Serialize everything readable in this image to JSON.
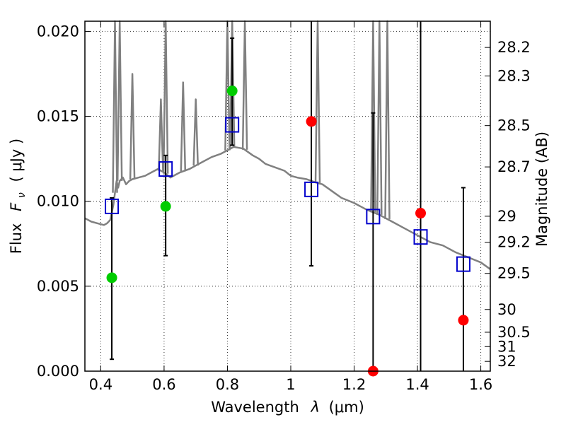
{
  "chart_data": {
    "type": "scatter",
    "xlabel_prefix": "Wavelength",
    "xlabel_symbol": "λ",
    "xlabel_unit": "(μm)",
    "ylabel_prefix": "Flux",
    "ylabel_symbol": "F",
    "ylabel_subscript": "ν",
    "ylabel_unit": "( μJy )",
    "y2label": "Magnitude (AB)",
    "xlim": [
      0.35,
      1.63
    ],
    "ylim": [
      0.0,
      0.0206
    ],
    "grid": true,
    "x_ticks": [
      0.4,
      0.6,
      0.8,
      1.0,
      1.2,
      1.4,
      1.6
    ],
    "x_tick_labels": [
      "0.4",
      "0.6",
      "0.8",
      "1",
      "1.2",
      "1.4",
      "1.6"
    ],
    "y_ticks": [
      0.0,
      0.005,
      0.01,
      0.015,
      0.02
    ],
    "y_tick_labels": [
      "0.000",
      "0.005",
      "0.010",
      "0.015",
      "0.020"
    ],
    "mag_ticks": [
      28.2,
      28.3,
      28.5,
      28.7,
      29,
      29.2,
      29.5,
      30,
      30.5,
      31,
      32
    ],
    "mag_tick_labels": [
      "28.2",
      "28.3",
      "28.5",
      "28.7",
      "29",
      "29.2",
      "29.5",
      "30",
      "30.5",
      "31",
      "32"
    ],
    "series": [
      {
        "kind": "model",
        "color": "#808080",
        "x": [
          0.35,
          0.37,
          0.39,
          0.41,
          0.42,
          0.43,
          0.44,
          0.445,
          0.45,
          0.455,
          0.46,
          0.47,
          0.48,
          0.49,
          0.5,
          0.52,
          0.54,
          0.56,
          0.58,
          0.6,
          0.62,
          0.65,
          0.68,
          0.7,
          0.72,
          0.75,
          0.78,
          0.8,
          0.82,
          0.85,
          0.88,
          0.9,
          0.92,
          0.95,
          0.98,
          1.0,
          1.02,
          1.05,
          1.08,
          1.1,
          1.13,
          1.16,
          1.2,
          1.24,
          1.28,
          1.32,
          1.36,
          1.4,
          1.44,
          1.48,
          1.52,
          1.56,
          1.6,
          1.63
        ],
        "y": [
          0.009,
          0.0088,
          0.0087,
          0.0086,
          0.0087,
          0.0089,
          0.0098,
          0.0105,
          0.0112,
          0.0108,
          0.0112,
          0.0114,
          0.011,
          0.0112,
          0.0113,
          0.0114,
          0.0115,
          0.0117,
          0.0119,
          0.0117,
          0.0114,
          0.0117,
          0.0119,
          0.0121,
          0.0123,
          0.0126,
          0.0128,
          0.013,
          0.0132,
          0.0131,
          0.0127,
          0.0125,
          0.0122,
          0.012,
          0.0118,
          0.0115,
          0.0114,
          0.0113,
          0.0111,
          0.011,
          0.0106,
          0.0102,
          0.0099,
          0.0095,
          0.0092,
          0.0088,
          0.0084,
          0.008,
          0.0076,
          0.0074,
          0.007,
          0.0067,
          0.0064,
          0.006
        ]
      },
      {
        "kind": "emission_lines",
        "color": "#808080",
        "x": [
          0.445,
          0.46,
          0.5,
          0.59,
          0.605,
          0.66,
          0.7,
          0.8,
          0.815,
          0.855,
          1.085,
          1.26,
          1.28,
          1.305
        ],
        "y": [
          0.0206,
          0.0206,
          0.0175,
          0.016,
          0.0206,
          0.017,
          0.016,
          0.0206,
          0.0206,
          0.0206,
          0.0206,
          0.0206,
          0.0206,
          0.0206
        ]
      },
      {
        "kind": "observed",
        "marker": "square",
        "color": "#0000cc",
        "x": [
          0.435,
          0.605,
          0.815,
          1.065,
          1.26,
          1.41,
          1.545
        ],
        "y": [
          0.0097,
          0.0119,
          0.0145,
          0.0107,
          0.0091,
          0.0079,
          0.0063
        ],
        "err_low": [
          0.0007,
          0.0068,
          0.0133,
          0.0062,
          0.0,
          0.0,
          0.0
        ],
        "err_high": [
          0.0102,
          0.0127,
          0.0196,
          0.0206,
          0.0152,
          0.0206,
          0.0108
        ]
      },
      {
        "kind": "predicted",
        "marker": "circle",
        "color": "#00cc00",
        "x": [
          0.435,
          0.605,
          0.815
        ],
        "y": [
          0.0055,
          0.0097,
          0.0165
        ]
      },
      {
        "kind": "predicted",
        "marker": "circle",
        "color": "#ff0000",
        "x": [
          1.065,
          1.26,
          1.41,
          1.545
        ],
        "y": [
          0.0147,
          0.0,
          0.0093,
          0.003
        ]
      }
    ]
  }
}
